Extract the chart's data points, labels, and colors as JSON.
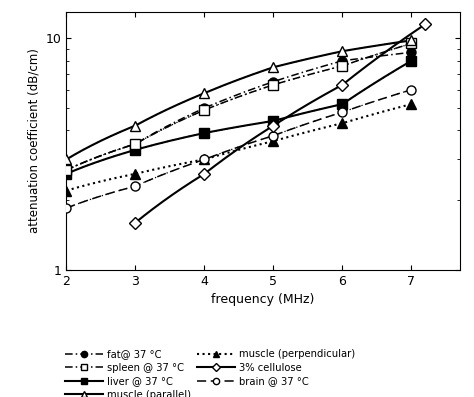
{
  "xlabel": "frequency (MHz)",
  "ylabel": "attenuation coefficient (dB/cm)",
  "xlim": [
    2,
    7.7
  ],
  "ylim": [
    1.0,
    13
  ],
  "fat": {
    "freqs": [
      2.0,
      3.0,
      4.0,
      5.0,
      6.0,
      7.0
    ],
    "values": [
      2.7,
      3.5,
      5.0,
      6.5,
      8.0,
      8.7
    ],
    "label": "fat@ 37 °C"
  },
  "liver": {
    "freqs": [
      2.0,
      3.0,
      4.0,
      5.0,
      6.0,
      7.0
    ],
    "values": [
      2.6,
      3.3,
      3.9,
      4.4,
      5.2,
      8.0
    ],
    "label": "liver @ 37 °C"
  },
  "muscle_perp": {
    "freqs": [
      2.0,
      3.0,
      4.0,
      5.0,
      6.0,
      7.0
    ],
    "values": [
      2.2,
      2.6,
      3.0,
      3.6,
      4.3,
      5.2
    ],
    "label": "muscle (perpendicular)"
  },
  "brain": {
    "freqs": [
      2.0,
      3.0,
      4.0,
      5.0,
      6.0,
      7.0
    ],
    "values": [
      1.85,
      2.3,
      3.0,
      3.8,
      4.8,
      6.0
    ],
    "label": "brain @ 37 °C"
  },
  "spleen": {
    "freqs": [
      2.0,
      3.0,
      4.0,
      5.0,
      6.0,
      7.0
    ],
    "values": [
      2.7,
      3.5,
      4.9,
      6.3,
      7.6,
      9.5
    ],
    "label": "spleen @ 37 °C"
  },
  "muscle_para": {
    "freqs": [
      2.0,
      3.0,
      4.0,
      5.0,
      6.0,
      7.0
    ],
    "values": [
      3.0,
      4.2,
      5.8,
      7.5,
      8.8,
      9.8
    ],
    "label": "muscle (parallel)"
  },
  "cellulose": {
    "freqs": [
      3.0,
      4.0,
      5.0,
      6.0,
      7.2
    ],
    "values": [
      1.6,
      2.6,
      4.2,
      6.3,
      11.5
    ],
    "label": "3% cellulose"
  },
  "background_color": "#ffffff",
  "line_color": "#000000"
}
